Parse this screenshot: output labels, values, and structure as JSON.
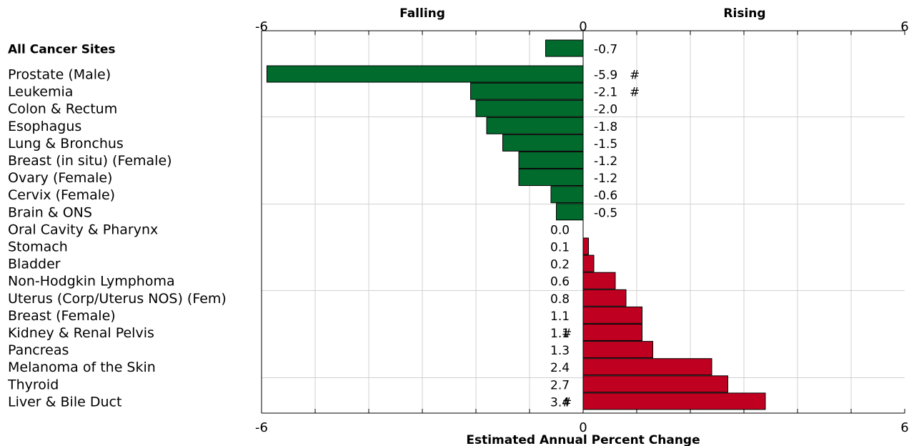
{
  "chart_data": {
    "type": "bar",
    "orientation": "horizontal",
    "header_left": "Falling",
    "header_right": "Rising",
    "xlabel": "Estimated Annual Percent Change",
    "xlim": [
      -6,
      6
    ],
    "top_ticks": [
      "-6",
      "0",
      "6"
    ],
    "bottom_ticks": [
      "-6",
      "0",
      "6"
    ],
    "summary": {
      "category": "All Cancer Sites",
      "value": -0.7,
      "label": "-0.7",
      "flag": ""
    },
    "categories": [
      "Prostate (Male)",
      "Leukemia",
      "Colon & Rectum",
      "Esophagus",
      "Lung & Bronchus",
      "Breast (in situ) (Female)",
      "Ovary (Female)",
      "Cervix (Female)",
      "Brain & ONS",
      "Oral Cavity & Pharynx",
      "Stomach",
      "Bladder",
      "Non-Hodgkin Lymphoma",
      "Uterus (Corp/Uterus NOS) (Fem)",
      "Breast (Female)",
      "Kidney & Renal Pelvis",
      "Pancreas",
      "Melanoma of the Skin",
      "Thyroid",
      "Liver & Bile Duct"
    ],
    "values": [
      -5.9,
      -2.1,
      -2.0,
      -1.8,
      -1.5,
      -1.2,
      -1.2,
      -0.6,
      -0.5,
      0.0,
      0.1,
      0.2,
      0.6,
      0.8,
      1.1,
      1.1,
      1.3,
      2.4,
      2.7,
      3.4
    ],
    "value_labels": [
      "-5.9",
      "-2.1",
      "-2.0",
      "-1.8",
      "-1.5",
      "-1.2",
      "-1.2",
      "-0.6",
      "-0.5",
      "0.0",
      "0.1",
      "0.2",
      "0.6",
      "0.8",
      "1.1",
      "1.1",
      "1.3",
      "2.4",
      "2.7",
      "3.4"
    ],
    "flags": [
      "#",
      "#",
      "",
      "",
      "",
      "",
      "",
      "",
      "",
      "",
      "",
      "",
      "",
      "",
      "",
      "#",
      "",
      "",
      "",
      "#"
    ],
    "colors": {
      "falling": "#006b2d",
      "rising": "#c00020",
      "grid": "#d0d0d0",
      "axis": "#000000"
    },
    "grid": true
  }
}
